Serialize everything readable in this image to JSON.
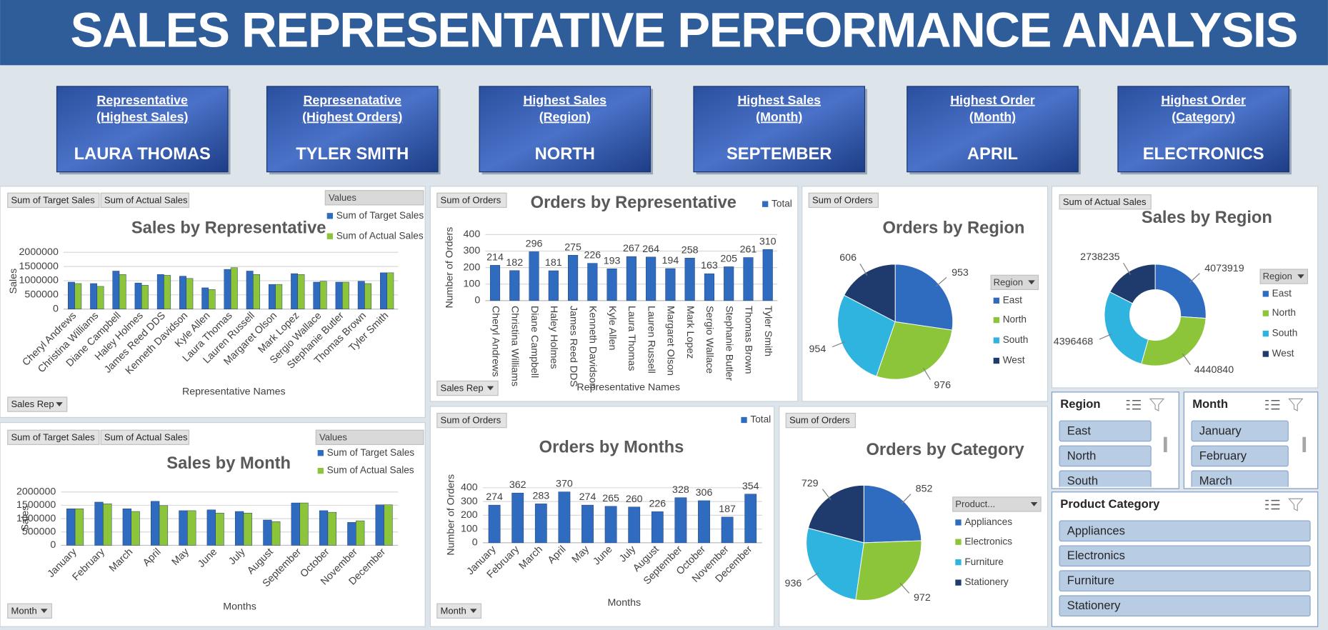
{
  "header": {
    "title": "SALES REPRESENTATIVE PERFORMANCE ANALYSIS"
  },
  "kpis": [
    {
      "title": [
        "Representative",
        "(Highest Sales)"
      ],
      "value": "LAURA THOMAS"
    },
    {
      "title": [
        "Represenatative",
        "(Highest Orders)"
      ],
      "value": "TYLER SMITH"
    },
    {
      "title": [
        "Highest Sales",
        "(Region)"
      ],
      "value": "NORTH"
    },
    {
      "title": [
        "Highest Sales",
        "(Month)"
      ],
      "value": "SEPTEMBER"
    },
    {
      "title": [
        "Highest Order",
        "(Month)"
      ],
      "value": "APRIL"
    },
    {
      "title": [
        "Highest Order",
        "(Category)"
      ],
      "value": "ELECTRONICS"
    }
  ],
  "chart_data": [
    {
      "type": "bar",
      "title": "Sales by Representative",
      "field_buttons": [
        "Sum of Target Sales",
        "Sum of Actual Sales"
      ],
      "filter_button": "Sales Rep",
      "legend_title": "Values",
      "x_label": "Representative Names",
      "y_label": "Sales",
      "categories": [
        "Cheryl Andrews",
        "Christina Williams",
        "Diane Campbell",
        "Haley Holmes",
        "James Reed DDS",
        "Kenneth Davidson",
        "Kyle Allen",
        "Laura Thomas",
        "Lauren Russell",
        "Margaret Olson",
        "Mark Lopez",
        "Sergio Wallace",
        "Stephanie Butler",
        "Thomas Brown",
        "Tyler Smith"
      ],
      "series": [
        {
          "name": "Sum of Target Sales",
          "color": "#2f6bbf",
          "values": [
            950000,
            900000,
            1340000,
            920000,
            1220000,
            1160000,
            750000,
            1400000,
            1340000,
            870000,
            1250000,
            950000,
            950000,
            980000,
            1280000
          ]
        },
        {
          "name": "Sum of Actual Sales",
          "color": "#8cc43a",
          "values": [
            900000,
            800000,
            1220000,
            840000,
            1190000,
            1080000,
            690000,
            1460000,
            1220000,
            870000,
            1220000,
            980000,
            950000,
            900000,
            1280000
          ]
        }
      ],
      "ylim": [
        0,
        2000000
      ],
      "yticks": [
        0,
        500000,
        1000000,
        1500000,
        2000000
      ],
      "grid": true,
      "data_labels": false
    },
    {
      "type": "bar",
      "title": "Orders by Representative",
      "field_buttons": [
        "Sum of Orders"
      ],
      "filter_button": "Sales Rep",
      "x_label": "Representative Names",
      "y_label": "Number of Orders",
      "categories": [
        "Cheryl Andrews",
        "Christina Williams",
        "Diane Campbell",
        "Haley Holmes",
        "James Reed DDS",
        "Kenneth Davidson",
        "Kyle Allen",
        "Laura Thomas",
        "Lauren Russell",
        "Margaret Olson",
        "Mark Lopez",
        "Sergio Wallace",
        "Stephanie Butler",
        "Thomas Brown",
        "Tyler Smith"
      ],
      "series": [
        {
          "name": "Total",
          "color": "#2f6bbf",
          "values": [
            214,
            182,
            296,
            181,
            275,
            226,
            193,
            267,
            264,
            194,
            258,
            163,
            205,
            261,
            310
          ]
        }
      ],
      "ylim": [
        0,
        400
      ],
      "yticks": [
        0,
        100,
        200,
        300,
        400
      ],
      "grid": true,
      "data_labels": true
    },
    {
      "type": "pie",
      "title": "Orders by Region",
      "field_buttons": [
        "Sum of Orders"
      ],
      "legend_title": "Region",
      "categories": [
        "East",
        "North",
        "South",
        "West"
      ],
      "values": [
        953,
        976,
        954,
        606
      ],
      "colors": [
        "#2f6bbf",
        "#8cc43a",
        "#2fb4e0",
        "#1f3b6e"
      ]
    },
    {
      "type": "donut",
      "title": "Sales by Region",
      "field_buttons": [
        "Sum of Actual Sales"
      ],
      "legend_title": "Region",
      "categories": [
        "East",
        "North",
        "South",
        "West"
      ],
      "values": [
        4073919,
        4440840,
        4396468,
        2738235
      ],
      "colors": [
        "#2f6bbf",
        "#8cc43a",
        "#2fb4e0",
        "#1f3b6e"
      ]
    },
    {
      "type": "bar",
      "title": "Sales by Month",
      "field_buttons": [
        "Sum of Target Sales",
        "Sum of Actual Sales"
      ],
      "filter_button": "Month",
      "legend_title": "Values",
      "x_label": "Months",
      "y_label": "Sales",
      "categories": [
        "January",
        "February",
        "March",
        "April",
        "May",
        "June",
        "July",
        "August",
        "September",
        "October",
        "November",
        "December"
      ],
      "series": [
        {
          "name": "Sum of Target Sales",
          "color": "#2f6bbf",
          "values": [
            1370000,
            1620000,
            1370000,
            1650000,
            1300000,
            1330000,
            1270000,
            950000,
            1590000,
            1300000,
            860000,
            1520000
          ]
        },
        {
          "name": "Sum of Actual Sales",
          "color": "#8cc43a",
          "values": [
            1370000,
            1560000,
            1270000,
            1490000,
            1300000,
            1210000,
            1210000,
            890000,
            1590000,
            1240000,
            920000,
            1520000
          ]
        }
      ],
      "ylim": [
        0,
        2000000
      ],
      "yticks": [
        0,
        500000,
        1000000,
        1500000,
        2000000
      ],
      "grid": true,
      "data_labels": false
    },
    {
      "type": "bar",
      "title": "Orders by Months",
      "field_buttons": [
        "Sum of Orders"
      ],
      "filter_button": "Month",
      "x_label": "Months",
      "y_label": "Number of Orders",
      "categories": [
        "January",
        "February",
        "March",
        "April",
        "May",
        "June",
        "July",
        "August",
        "September",
        "October",
        "November",
        "December"
      ],
      "series": [
        {
          "name": "Total",
          "color": "#2f6bbf",
          "values": [
            274,
            362,
            283,
            370,
            274,
            265,
            260,
            226,
            328,
            306,
            187,
            354
          ]
        }
      ],
      "ylim": [
        0,
        400
      ],
      "yticks": [
        0,
        100,
        200,
        300,
        400
      ],
      "grid": true,
      "data_labels": true
    },
    {
      "type": "pie",
      "title": "Orders by Category",
      "field_buttons": [
        "Sum of Orders"
      ],
      "legend_title": "Product...",
      "categories": [
        "Appliances",
        "Electronics",
        "Furniture",
        "Stationery"
      ],
      "values": [
        852,
        972,
        936,
        729
      ],
      "colors": [
        "#2f6bbf",
        "#8cc43a",
        "#2fb4e0",
        "#1f3b6e"
      ]
    }
  ],
  "slicers": [
    {
      "title": "Region",
      "items": [
        "East",
        "North",
        "South"
      ]
    },
    {
      "title": "Month",
      "items": [
        "January",
        "February",
        "March"
      ]
    },
    {
      "title": "Product Category",
      "items": [
        "Appliances",
        "Electronics",
        "Furniture",
        "Stationery"
      ]
    }
  ]
}
